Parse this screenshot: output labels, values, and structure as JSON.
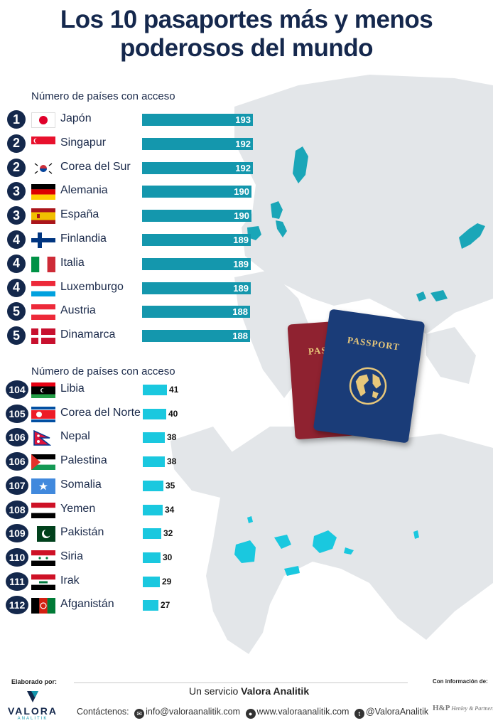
{
  "title": [
    "Los 10 pasaportes más y menos",
    "poderosos del mundo"
  ],
  "top_section": {
    "label": "Número de países con acceso",
    "max": 193,
    "rows": [
      {
        "rank": "1",
        "country": "Japón",
        "value": 193,
        "flag": "japan"
      },
      {
        "rank": "2",
        "country": "Singapur",
        "value": 192,
        "flag": "singapore"
      },
      {
        "rank": "2",
        "country": "Corea del Sur",
        "value": 192,
        "flag": "south-korea"
      },
      {
        "rank": "3",
        "country": "Alemania",
        "value": 190,
        "flag": "germany"
      },
      {
        "rank": "3",
        "country": "España",
        "value": 190,
        "flag": "spain"
      },
      {
        "rank": "4",
        "country": "Finlandia",
        "value": 189,
        "flag": "finland"
      },
      {
        "rank": "4",
        "country": "Italia",
        "value": 189,
        "flag": "italy"
      },
      {
        "rank": "4",
        "country": "Luxemburgo",
        "value": 189,
        "flag": "luxembourg"
      },
      {
        "rank": "5",
        "country": "Austria",
        "value": 188,
        "flag": "austria"
      },
      {
        "rank": "5",
        "country": "Dinamarca",
        "value": 188,
        "flag": "denmark"
      }
    ]
  },
  "bottom_section": {
    "label": "Número de países con acceso",
    "rows": [
      {
        "rank": "104",
        "country": "Libia",
        "value": 41,
        "flag": "libya"
      },
      {
        "rank": "105",
        "country": "Corea del Norte",
        "value": 40,
        "flag": "north-korea"
      },
      {
        "rank": "106",
        "country": "Nepal",
        "value": 38,
        "flag": "nepal"
      },
      {
        "rank": "106",
        "country": "Palestina",
        "value": 38,
        "flag": "palestine"
      },
      {
        "rank": "107",
        "country": "Somalia",
        "value": 35,
        "flag": "somalia"
      },
      {
        "rank": "108",
        "country": "Yemen",
        "value": 34,
        "flag": "yemen"
      },
      {
        "rank": "109",
        "country": "Pakistán",
        "value": 32,
        "flag": "pakistan"
      },
      {
        "rank": "110",
        "country": "Siria",
        "value": 30,
        "flag": "syria"
      },
      {
        "rank": "111",
        "country": "Irak",
        "value": 29,
        "flag": "iraq"
      },
      {
        "rank": "112",
        "country": "Afganistán",
        "value": 27,
        "flag": "afghanistan"
      }
    ]
  },
  "passports": {
    "label": "PASSPORT"
  },
  "colors": {
    "title": "#15284d",
    "rank_badge": "#14284c",
    "top_bar": "#1497ad",
    "bottom_bar": "#1ac8df",
    "map_land": "#e3e6e9",
    "highlight": "#1aa6b8"
  },
  "footer": {
    "elaborado": "Elaborado por:",
    "logo_name": "VALORA",
    "logo_sub": "ANALITIK",
    "servicio_prefix": "Un servicio ",
    "servicio_brand": "Valora Analitik",
    "contact_label": "Contáctenos:",
    "email": "info@valoraanalitik.com",
    "web": "www.valoraanalitik.com",
    "twitter": "@ValoraAnalitik",
    "con_info": "Con información de:",
    "source_mark": "H&P",
    "source_name": "Henley & Partners"
  }
}
